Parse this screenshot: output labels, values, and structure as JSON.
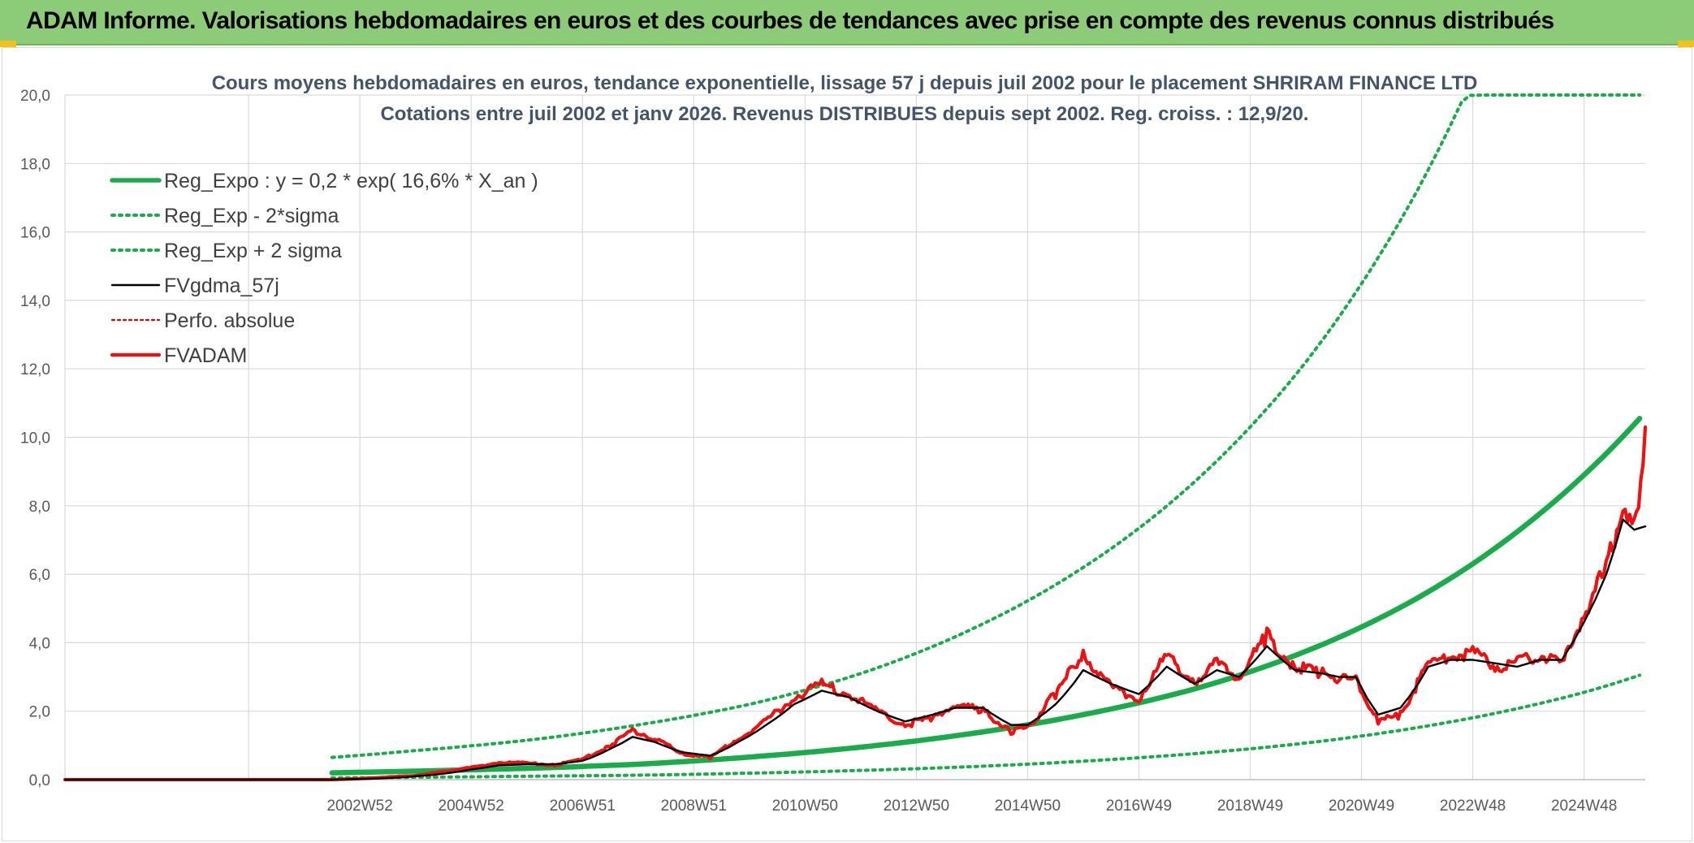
{
  "banner": {
    "title": "ADAM Informe. Valorisations hebdomadaires en euros et des courbes de tendances avec prise en compte des revenus connus distribués"
  },
  "colors": {
    "banner_bg": "#8ccb78",
    "reg_expo": "#1aab4b",
    "sigma_band": "#1aab4b",
    "fvgdma": "#000000",
    "perfo": "#e00000",
    "fvadam": "#ee1111",
    "grid": "#d9d9d9"
  },
  "chart_data": {
    "type": "line",
    "title": [
      "Cours moyens hebdomadaires en euros, tendance exponentielle, lissage 57 j depuis juil 2002 pour le placement SHRIRAM FINANCE LTD",
      "Cotations entre juil 2002  et janv 2026. Revenus DISTRIBUES depuis sept 2002. Reg. croiss. : 12,9/20."
    ],
    "xlabel": "",
    "ylabel": "",
    "ylim": [
      0,
      20
    ],
    "xlim": [
      1997.7,
      2026.1
    ],
    "y_ticks": [
      "0,0",
      "2,0",
      "4,0",
      "6,0",
      "8,0",
      "10,0",
      "12,0",
      "14,0",
      "16,0",
      "18,0",
      "20,0"
    ],
    "x_ticks": [
      {
        "label": "2002W52",
        "t": 2003.0
      },
      {
        "label": "2004W52",
        "t": 2005.0
      },
      {
        "label": "2006W51",
        "t": 2007.0
      },
      {
        "label": "2008W51",
        "t": 2009.0
      },
      {
        "label": "2010W50",
        "t": 2011.0
      },
      {
        "label": "2012W50",
        "t": 2013.0
      },
      {
        "label": "2014W50",
        "t": 2015.0
      },
      {
        "label": "2016W49",
        "t": 2017.0
      },
      {
        "label": "2018W49",
        "t": 2019.0
      },
      {
        "label": "2020W49",
        "t": 2021.0
      },
      {
        "label": "2022W48",
        "t": 2023.0
      },
      {
        "label": "2024W48",
        "t": 2025.0
      }
    ],
    "grid": true,
    "legend_position": "top-left",
    "legend": [
      "Reg_Expo : y = 0,2 * exp( 16,6% *  X_an )",
      "Reg_Exp - 2*sigma",
      "Reg_Exp + 2 sigma",
      "FVgdma_57j",
      "Perfo. absolue",
      "FVADAM"
    ],
    "series": [
      {
        "name": "Reg_Expo : y = 0,2 * exp( 16,6% *  X_an )",
        "style": "solid-thick",
        "x": [
          2002.5,
          2004,
          2006,
          2008,
          2010,
          2012,
          2014,
          2016,
          2018,
          2020,
          2022,
          2024,
          2025,
          2026
        ],
        "values": [
          0.2,
          0.25,
          0.33,
          0.45,
          0.66,
          0.95,
          1.35,
          1.9,
          2.65,
          3.75,
          5.3,
          7.5,
          8.9,
          10.55
        ]
      },
      {
        "name": "Reg_Exp - 2*sigma",
        "style": "dotted",
        "x": [
          2002.5,
          2004,
          2006,
          2008,
          2010,
          2012,
          2014,
          2016,
          2018,
          2020,
          2022,
          2024,
          2025,
          2026
        ],
        "values": [
          0.05,
          0.07,
          0.1,
          0.13,
          0.19,
          0.27,
          0.38,
          0.54,
          0.76,
          1.07,
          1.52,
          2.15,
          2.55,
          3.05
        ]
      },
      {
        "name": "Reg_Exp + 2 sigma",
        "style": "dotted",
        "x": [
          2002.5,
          2004,
          2006,
          2008,
          2010,
          2012,
          2014,
          2016,
          2018,
          2020,
          2022,
          2022.8,
          2022.95,
          2023.3,
          2026
        ],
        "values": [
          0.65,
          0.85,
          1.15,
          1.6,
          2.2,
          3.1,
          4.4,
          6.2,
          8.7,
          12.2,
          17.2,
          19.8,
          19.99,
          20.0,
          20.0
        ]
      },
      {
        "name": "FVgdma_57j",
        "style": "solid-thin",
        "x": [
          1997.7,
          2002.5,
          2003,
          2004,
          2005,
          2005.5,
          2006,
          2006.5,
          2007,
          2007.5,
          2007.9,
          2008.3,
          2008.8,
          2009.3,
          2009.8,
          2010.3,
          2010.8,
          2011.3,
          2011.8,
          2012.3,
          2012.8,
          2013.3,
          2013.7,
          2014.2,
          2014.7,
          2015.0,
          2015.5,
          2016.0,
          2016.5,
          2017.0,
          2017.5,
          2018.0,
          2018.4,
          2018.8,
          2019.3,
          2019.8,
          2020.3,
          2020.6,
          2020.9,
          2021.3,
          2021.7,
          2022.2,
          2022.6,
          2023.0,
          2023.4,
          2023.8,
          2024.2,
          2024.6,
          2025.0,
          2025.4,
          2025.7,
          2025.9,
          2026.1
        ],
        "values": [
          0,
          0,
          0.02,
          0.1,
          0.3,
          0.42,
          0.45,
          0.45,
          0.55,
          0.9,
          1.25,
          1.1,
          0.8,
          0.7,
          1.1,
          1.6,
          2.2,
          2.6,
          2.4,
          2.0,
          1.7,
          1.9,
          2.1,
          2.1,
          1.6,
          1.6,
          2.2,
          3.2,
          2.8,
          2.5,
          3.3,
          2.8,
          3.2,
          3.0,
          3.9,
          3.2,
          3.1,
          3.0,
          3.0,
          1.9,
          2.1,
          3.3,
          3.5,
          3.5,
          3.4,
          3.3,
          3.5,
          3.5,
          4.6,
          6.0,
          7.6,
          7.3,
          7.4
        ]
      },
      {
        "name": "Perfo. absolue",
        "style": "dotted-thin",
        "x": [
          1997.7,
          2002.5
        ],
        "values": [
          0,
          0
        ]
      },
      {
        "name": "FVADAM",
        "style": "solid",
        "x": [
          1997.7,
          2002.5,
          2003,
          2004,
          2005,
          2005.5,
          2006,
          2006.5,
          2007,
          2007.5,
          2007.9,
          2008.3,
          2008.8,
          2009.3,
          2009.8,
          2010.3,
          2010.8,
          2011.3,
          2011.8,
          2012.3,
          2012.8,
          2013.3,
          2013.7,
          2014.2,
          2014.7,
          2015.0,
          2015.5,
          2016.0,
          2016.5,
          2017.0,
          2017.5,
          2018.0,
          2018.4,
          2018.8,
          2019.3,
          2019.8,
          2020.3,
          2020.6,
          2020.9,
          2021.3,
          2021.7,
          2022.2,
          2022.6,
          2023.0,
          2023.4,
          2023.8,
          2024.2,
          2024.6,
          2025.0,
          2025.4,
          2025.7,
          2025.9,
          2026.1
        ],
        "values": [
          0,
          0,
          0.03,
          0.12,
          0.35,
          0.5,
          0.48,
          0.42,
          0.6,
          1.0,
          1.45,
          1.2,
          0.75,
          0.65,
          1.2,
          1.7,
          2.4,
          2.8,
          2.5,
          2.0,
          1.6,
          1.8,
          2.2,
          2.0,
          1.4,
          1.5,
          2.5,
          3.7,
          2.7,
          2.4,
          3.6,
          2.9,
          3.4,
          3.0,
          4.2,
          3.3,
          3.1,
          3.0,
          2.9,
          1.7,
          1.9,
          3.4,
          3.6,
          3.7,
          3.3,
          3.4,
          3.7,
          3.3,
          4.9,
          6.1,
          8.3,
          7.2,
          10.3
        ]
      }
    ]
  }
}
